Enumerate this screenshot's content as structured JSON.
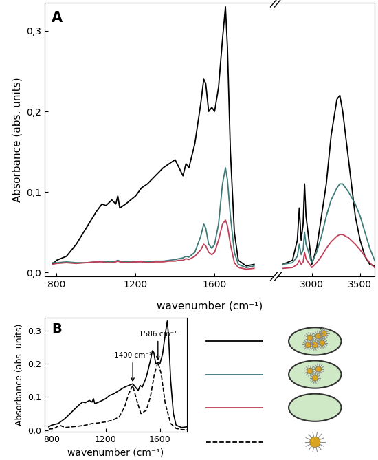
{
  "chart_data": [
    {
      "type": "line",
      "title": "A",
      "x_label": "wavenumber (cm⁻¹)",
      "y_label": "Absorbance (abs. units)",
      "xlim": [
        [
          740,
          1900
        ],
        [
          2650,
          3650
        ]
      ],
      "xticks": [
        [
          800,
          1200,
          1600
        ],
        [
          3000,
          3500
        ]
      ],
      "ylim": [
        -0.005,
        0.335
      ],
      "yticks": [
        {
          "value": 0.0,
          "label": "0,0"
        },
        {
          "value": 0.1,
          "label": "0,1"
        },
        {
          "value": 0.2,
          "label": "0,2"
        },
        {
          "value": 0.3,
          "label": "0,3"
        }
      ],
      "series": [
        {
          "color": "#000000",
          "line_style": "solid",
          "x": [
            780,
            800,
            850,
            900,
            950,
            1000,
            1030,
            1050,
            1080,
            1100,
            1110,
            1120,
            1150,
            1200,
            1230,
            1260,
            1300,
            1340,
            1370,
            1400,
            1420,
            1440,
            1455,
            1470,
            1500,
            1530,
            1545,
            1555,
            1570,
            1586,
            1600,
            1620,
            1640,
            1655,
            1665,
            1680,
            1700,
            1720,
            1760,
            1800,
            2250,
            2700,
            2800,
            2850,
            2870,
            2890,
            2910,
            2925,
            2940,
            2960,
            2990,
            3000,
            3050,
            3100,
            3150,
            3200,
            3260,
            3290,
            3320,
            3380,
            3450,
            3500,
            3550,
            3600,
            3650
          ],
          "values": [
            0.01,
            0.015,
            0.02,
            0.035,
            0.055,
            0.075,
            0.085,
            0.083,
            0.09,
            0.085,
            0.095,
            0.08,
            0.085,
            0.095,
            0.105,
            0.11,
            0.12,
            0.13,
            0.135,
            0.14,
            0.13,
            0.12,
            0.135,
            0.13,
            0.16,
            0.21,
            0.24,
            0.235,
            0.2,
            0.205,
            0.2,
            0.23,
            0.29,
            0.33,
            0.28,
            0.15,
            0.05,
            0.015,
            0.008,
            0.01,
            null,
            0.01,
            0.015,
            0.04,
            0.08,
            0.04,
            0.06,
            0.11,
            0.07,
            0.05,
            0.02,
            0.01,
            0.03,
            0.07,
            0.11,
            0.17,
            0.215,
            0.22,
            0.2,
            0.14,
            0.07,
            0.04,
            0.02,
            0.01,
            0.008
          ]
        },
        {
          "color": "#3d7a78",
          "line_style": "solid",
          "x": [
            780,
            800,
            850,
            900,
            950,
            1000,
            1030,
            1050,
            1080,
            1100,
            1110,
            1120,
            1150,
            1200,
            1230,
            1260,
            1300,
            1340,
            1370,
            1400,
            1420,
            1440,
            1455,
            1470,
            1500,
            1530,
            1545,
            1555,
            1570,
            1586,
            1600,
            1620,
            1640,
            1655,
            1665,
            1680,
            1700,
            1720,
            1760,
            1800,
            2250,
            2700,
            2800,
            2850,
            2870,
            2890,
            2910,
            2925,
            2940,
            2960,
            2990,
            3000,
            3050,
            3100,
            3150,
            3200,
            3260,
            3290,
            3320,
            3380,
            3450,
            3500,
            3550,
            3600,
            3650
          ],
          "values": [
            0.012,
            0.012,
            0.013,
            0.012,
            0.012,
            0.013,
            0.014,
            0.013,
            0.013,
            0.014,
            0.015,
            0.014,
            0.013,
            0.013,
            0.014,
            0.013,
            0.014,
            0.014,
            0.015,
            0.016,
            0.017,
            0.018,
            0.02,
            0.019,
            0.025,
            0.045,
            0.06,
            0.055,
            0.035,
            0.03,
            0.035,
            0.06,
            0.11,
            0.13,
            0.115,
            0.07,
            0.025,
            0.01,
            0.006,
            0.008,
            null,
            0.01,
            0.012,
            0.02,
            0.035,
            0.022,
            0.028,
            0.05,
            0.035,
            0.028,
            0.015,
            0.012,
            0.025,
            0.045,
            0.07,
            0.09,
            0.105,
            0.11,
            0.11,
            0.1,
            0.085,
            0.07,
            0.05,
            0.03,
            0.015
          ]
        },
        {
          "color": "#c0405a",
          "line_style": "solid",
          "x": [
            780,
            800,
            850,
            900,
            950,
            1000,
            1030,
            1050,
            1080,
            1100,
            1110,
            1120,
            1150,
            1200,
            1230,
            1260,
            1300,
            1340,
            1370,
            1400,
            1420,
            1440,
            1455,
            1470,
            1500,
            1530,
            1545,
            1555,
            1570,
            1586,
            1600,
            1620,
            1640,
            1655,
            1665,
            1680,
            1700,
            1720,
            1760,
            1800,
            2250,
            2700,
            2800,
            2850,
            2870,
            2890,
            2910,
            2925,
            2940,
            2960,
            2990,
            3000,
            3050,
            3100,
            3150,
            3200,
            3260,
            3290,
            3320,
            3380,
            3450,
            3500,
            3550,
            3600,
            3650
          ],
          "values": [
            0.01,
            0.011,
            0.012,
            0.011,
            0.012,
            0.013,
            0.013,
            0.012,
            0.012,
            0.013,
            0.014,
            0.013,
            0.012,
            0.013,
            0.013,
            0.012,
            0.013,
            0.013,
            0.014,
            0.014,
            0.015,
            0.015,
            0.017,
            0.016,
            0.02,
            0.028,
            0.035,
            0.033,
            0.025,
            0.022,
            0.025,
            0.04,
            0.06,
            0.065,
            0.058,
            0.035,
            0.012,
            0.006,
            0.004,
            0.005,
            null,
            0.005,
            0.006,
            0.01,
            0.015,
            0.01,
            0.013,
            0.025,
            0.017,
            0.013,
            0.008,
            0.006,
            0.012,
            0.02,
            0.03,
            0.038,
            0.045,
            0.047,
            0.047,
            0.043,
            0.035,
            0.028,
            0.02,
            0.012,
            0.006
          ]
        }
      ]
    },
    {
      "type": "line",
      "title": "B",
      "x_label": "wavenumber (cm⁻¹)",
      "y_label": "Absorbance (abs. units)",
      "xlim": [
        750,
        1800
      ],
      "xticks": [
        800,
        1200,
        1600
      ],
      "ylim": [
        -0.005,
        0.34
      ],
      "yticks": [
        {
          "value": 0.0,
          "label": "0,0"
        },
        {
          "value": 0.1,
          "label": "0,1"
        },
        {
          "value": 0.2,
          "label": "0,2"
        },
        {
          "value": 0.3,
          "label": "0,3"
        }
      ],
      "annotations": [
        {
          "text": "1400 cm⁻¹",
          "x": 1400,
          "y": 0.14
        },
        {
          "text": "1586 cm⁻¹",
          "x": 1586,
          "y": 0.205
        }
      ],
      "series": [
        {
          "color": "#000000",
          "line_style": "solid",
          "x": [
            780,
            800,
            850,
            900,
            950,
            1000,
            1030,
            1050,
            1080,
            1100,
            1110,
            1120,
            1150,
            1200,
            1230,
            1260,
            1300,
            1340,
            1370,
            1400,
            1420,
            1440,
            1455,
            1470,
            1500,
            1530,
            1545,
            1555,
            1570,
            1586,
            1600,
            1620,
            1640,
            1655,
            1665,
            1680,
            1700,
            1720,
            1760,
            1800
          ],
          "values": [
            0.01,
            0.015,
            0.02,
            0.035,
            0.055,
            0.075,
            0.085,
            0.083,
            0.09,
            0.085,
            0.095,
            0.08,
            0.085,
            0.095,
            0.105,
            0.11,
            0.12,
            0.13,
            0.135,
            0.14,
            0.13,
            0.12,
            0.135,
            0.13,
            0.16,
            0.21,
            0.24,
            0.235,
            0.2,
            0.205,
            0.2,
            0.23,
            0.29,
            0.33,
            0.28,
            0.15,
            0.05,
            0.015,
            0.008,
            0.01
          ]
        },
        {
          "color": "#000000",
          "line_style": "dashed",
          "x": [
            780,
            820,
            860,
            900,
            950,
            1000,
            1050,
            1100,
            1150,
            1200,
            1250,
            1300,
            1340,
            1370,
            1400,
            1430,
            1460,
            1500,
            1530,
            1560,
            1586,
            1610,
            1640,
            1680,
            1720,
            1760,
            1800
          ],
          "values": [
            0.003,
            0.005,
            0.015,
            0.008,
            0.01,
            0.012,
            0.015,
            0.02,
            0.022,
            0.025,
            0.03,
            0.04,
            0.07,
            0.11,
            0.135,
            0.09,
            0.05,
            0.06,
            0.1,
            0.17,
            0.205,
            0.17,
            0.08,
            0.02,
            0.005,
            0.002,
            0.001
          ]
        }
      ]
    }
  ]
}
